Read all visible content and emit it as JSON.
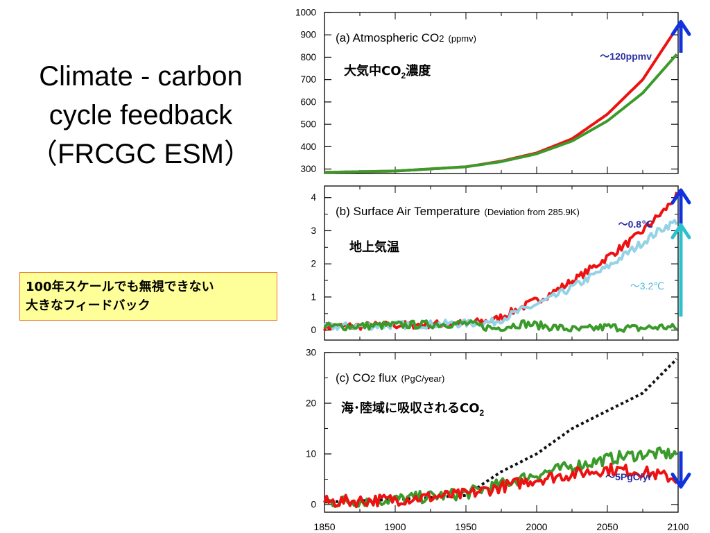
{
  "slide": {
    "title_lines": [
      "Climate - carbon",
      "cycle feedback",
      "（FRCGC ESM）"
    ],
    "note_lines": [
      "100年スケールでも無視できない",
      "大きなフィードバック"
    ]
  },
  "colors": {
    "red": "#ee1111",
    "green": "#3a9a2a",
    "light_blue": "#94d2e6",
    "black_dotted": "#111111",
    "blue_arrow": "#1133dd",
    "cyan_arrow": "#2cc2cc",
    "annotation_blue": "#2a2fa0",
    "annotation_light_blue": "#4fb8da",
    "note_fill": "#ffff99",
    "note_border": "#e8742a"
  },
  "chart_data": [
    {
      "type": "line",
      "panel": "a",
      "title": "(a) Atmospheric CO",
      "title_sub": "2",
      "title_unit": "(ppmv)",
      "jp_label": "大気中CO",
      "jp_label_sub": "2",
      "jp_label_tail": "濃度",
      "ylim": [
        280,
        1000
      ],
      "yticks": [
        "300",
        "400",
        "500",
        "600",
        "700",
        "800",
        "900",
        "1000"
      ],
      "x": [
        1850,
        1900,
        1950,
        1975,
        2000,
        2025,
        2050,
        2075,
        2100
      ],
      "series": [
        {
          "color": "red",
          "values": [
            285,
            291,
            310,
            335,
            372,
            435,
            545,
            700,
            940
          ]
        },
        {
          "color": "green",
          "values": [
            285,
            291,
            310,
            333,
            368,
            425,
            515,
            640,
            820
          ]
        }
      ],
      "annotation": "～120ppmv",
      "arrow": "double",
      "arrow_range": [
        820,
        940
      ]
    },
    {
      "type": "line",
      "panel": "b",
      "title": "(b) Surface Air Temperature",
      "title_unit": "(Deviation from 285.9K)",
      "jp_label": "地上気温",
      "ylim": [
        -0.3,
        4.35
      ],
      "yticks": [
        "0",
        "1",
        "2",
        "3",
        "4"
      ],
      "x": [
        1850,
        1950,
        1970,
        1990,
        2010,
        2030,
        2050,
        2070,
        2090,
        2100
      ],
      "series": [
        {
          "color": "red",
          "values": [
            0.1,
            0.2,
            0.3,
            0.7,
            1.1,
            1.6,
            2.2,
            2.8,
            3.6,
            4.1
          ]
        },
        {
          "color": "light_blue",
          "values": [
            0.1,
            0.2,
            0.25,
            0.6,
            0.95,
            1.4,
            1.9,
            2.5,
            3.1,
            3.3
          ]
        },
        {
          "color": "green",
          "values": [
            0.1,
            0.2,
            0.05,
            0.2,
            0.1,
            0.0,
            0.1,
            0.05,
            0.1,
            0.05
          ]
        }
      ],
      "annotations": [
        "～0.8℃",
        "～3.2℃"
      ],
      "arrow_blue_range": [
        3.3,
        4.1
      ],
      "arrow_cyan_range": [
        0.2,
        3.3
      ]
    },
    {
      "type": "line",
      "panel": "c",
      "title": "(c) CO",
      "title_sub": "2",
      "title_tail": " flux",
      "title_unit": "(PgC/year)",
      "jp_label": "海･陸域に吸収されるCO",
      "jp_label_sub": "2",
      "ylim": [
        -1.5,
        30
      ],
      "yticks": [
        "0",
        "10",
        "20",
        "30"
      ],
      "x": [
        1850,
        1900,
        1950,
        1975,
        2000,
        2025,
        2050,
        2075,
        2100
      ],
      "series": [
        {
          "color": "black_dotted",
          "dashed": true,
          "values": [
            0.5,
            1.0,
            1.8,
            6.5,
            10,
            15,
            18.5,
            22,
            29
          ]
        },
        {
          "color": "green",
          "values": [
            0.5,
            1.0,
            2.2,
            4.0,
            6.0,
            7.5,
            9.0,
            10,
            10
          ]
        },
        {
          "color": "red",
          "values": [
            0.5,
            1.0,
            2.0,
            3.5,
            5.0,
            6.0,
            7.0,
            6.5,
            5.0
          ]
        }
      ],
      "annotation": "～5PgC/yr",
      "arrow": "double",
      "arrow_range": [
        3.5,
        10.5
      ]
    }
  ],
  "x_axis": {
    "xlim": [
      1850,
      2100
    ],
    "ticks": [
      "1850",
      "1900",
      "1950",
      "2000",
      "2050",
      "2100"
    ]
  }
}
